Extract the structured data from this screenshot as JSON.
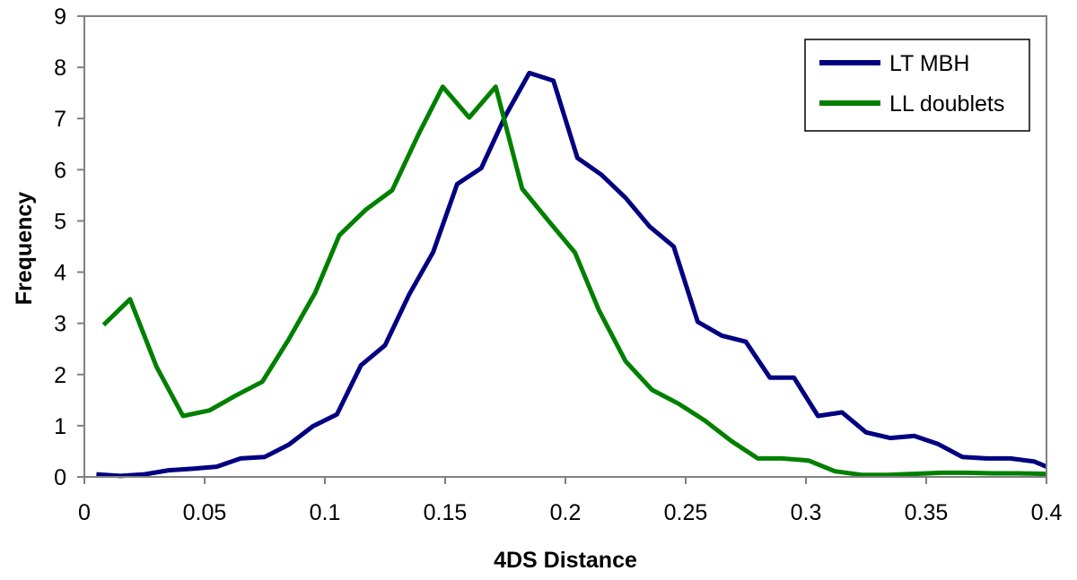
{
  "chart_data": {
    "type": "line",
    "title": "",
    "xlabel": "4DS Distance",
    "ylabel": "Frequency",
    "xlim": [
      0,
      0.4
    ],
    "ylim": [
      0,
      9
    ],
    "x_ticks": [
      "0",
      "0.05",
      "0.1",
      "0.15",
      "0.2",
      "0.25",
      "0.3",
      "0.35",
      "0.4"
    ],
    "y_ticks": [
      "0",
      "1",
      "2",
      "3",
      "4",
      "5",
      "6",
      "7",
      "8",
      "9"
    ],
    "grid": false,
    "legend_position": "top-right",
    "series": [
      {
        "name": "LT MBH",
        "color": "#000080",
        "points": [
          [
            0.005,
            0.05
          ],
          [
            0.015,
            0.02
          ],
          [
            0.025,
            0.05
          ],
          [
            0.035,
            0.13
          ],
          [
            0.045,
            0.16
          ],
          [
            0.055,
            0.2
          ],
          [
            0.065,
            0.36
          ],
          [
            0.075,
            0.39
          ],
          [
            0.085,
            0.63
          ],
          [
            0.095,
            0.99
          ],
          [
            0.105,
            1.22
          ],
          [
            0.115,
            2.18
          ],
          [
            0.125,
            2.57
          ],
          [
            0.135,
            3.56
          ],
          [
            0.145,
            4.39
          ],
          [
            0.155,
            5.72
          ],
          [
            0.165,
            6.03
          ],
          [
            0.175,
            7.05
          ],
          [
            0.185,
            7.89
          ],
          [
            0.195,
            7.74
          ],
          [
            0.205,
            6.23
          ],
          [
            0.215,
            5.9
          ],
          [
            0.225,
            5.45
          ],
          [
            0.235,
            4.89
          ],
          [
            0.245,
            4.5
          ],
          [
            0.255,
            3.03
          ],
          [
            0.265,
            2.76
          ],
          [
            0.275,
            2.64
          ],
          [
            0.285,
            1.94
          ],
          [
            0.295,
            1.94
          ],
          [
            0.305,
            1.19
          ],
          [
            0.315,
            1.26
          ],
          [
            0.325,
            0.87
          ],
          [
            0.335,
            0.76
          ],
          [
            0.345,
            0.8
          ],
          [
            0.355,
            0.64
          ],
          [
            0.365,
            0.39
          ],
          [
            0.375,
            0.36
          ],
          [
            0.385,
            0.36
          ],
          [
            0.395,
            0.3
          ],
          [
            0.4,
            0.2
          ]
        ]
      },
      {
        "name": "LL doublets",
        "color": "#008000",
        "points": [
          [
            0.008,
            2.97
          ],
          [
            0.019,
            3.47
          ],
          [
            0.03,
            2.15
          ],
          [
            0.041,
            1.19
          ],
          [
            0.052,
            1.3
          ],
          [
            0.063,
            1.59
          ],
          [
            0.074,
            1.86
          ],
          [
            0.085,
            2.69
          ],
          [
            0.096,
            3.6
          ],
          [
            0.106,
            4.72
          ],
          [
            0.117,
            5.22
          ],
          [
            0.128,
            5.6
          ],
          [
            0.139,
            6.7
          ],
          [
            0.149,
            7.62
          ],
          [
            0.16,
            7.02
          ],
          [
            0.171,
            7.62
          ],
          [
            0.182,
            5.63
          ],
          [
            0.193,
            5.0
          ],
          [
            0.204,
            4.38
          ],
          [
            0.214,
            3.25
          ],
          [
            0.225,
            2.26
          ],
          [
            0.236,
            1.7
          ],
          [
            0.247,
            1.43
          ],
          [
            0.258,
            1.1
          ],
          [
            0.269,
            0.7
          ],
          [
            0.28,
            0.36
          ],
          [
            0.29,
            0.36
          ],
          [
            0.301,
            0.32
          ],
          [
            0.312,
            0.11
          ],
          [
            0.323,
            0.04
          ],
          [
            0.334,
            0.04
          ],
          [
            0.345,
            0.06
          ],
          [
            0.356,
            0.08
          ],
          [
            0.367,
            0.08
          ],
          [
            0.378,
            0.07
          ],
          [
            0.388,
            0.07
          ],
          [
            0.4,
            0.06
          ]
        ]
      }
    ]
  }
}
